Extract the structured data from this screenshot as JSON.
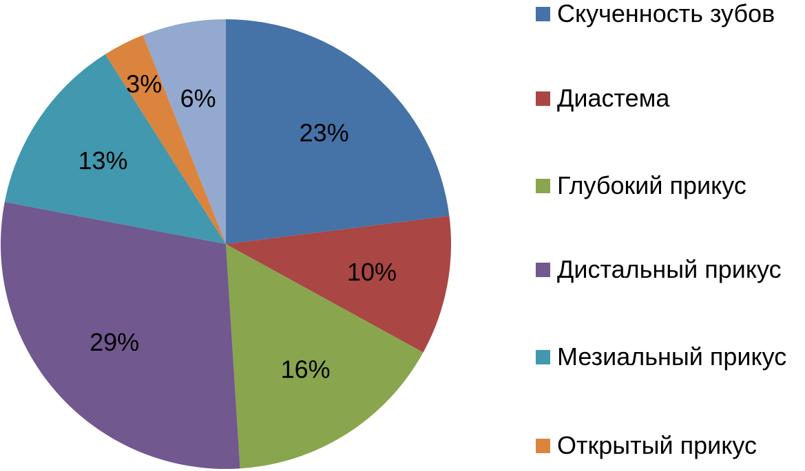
{
  "chart_data": {
    "type": "pie",
    "title": "",
    "start_angle_deg": 0,
    "direction": "clockwise",
    "legend_position": "right",
    "categories": [
      "Скученность зубов",
      "Диастема",
      "Глубокий прикус",
      "Дистальный прикус",
      "Мезиальный прикус",
      "Открытый прикус",
      ""
    ],
    "values": [
      23,
      10,
      16,
      29,
      13,
      3,
      6
    ],
    "data_labels": [
      "23%",
      "10%",
      "16%",
      "29%",
      "13%",
      "3%",
      "6%"
    ],
    "colors": [
      "#4572A7",
      "#AA4643",
      "#89A54E",
      "#71588F",
      "#4198AF",
      "#DB843D",
      "#93A9CF"
    ]
  },
  "legend": {
    "items": [
      {
        "label": "Скученность зубов",
        "color": "#4572A7"
      },
      {
        "label": "Диастема",
        "color": "#AA4643"
      },
      {
        "label": "Глубокий прикус",
        "color": "#89A54E"
      },
      {
        "label": "Дистальный прикус",
        "color": "#71588F"
      },
      {
        "label": "Мезиальный прикус",
        "color": "#4198AF"
      },
      {
        "label": "Открытый прикус",
        "color": "#DB843D"
      }
    ]
  }
}
